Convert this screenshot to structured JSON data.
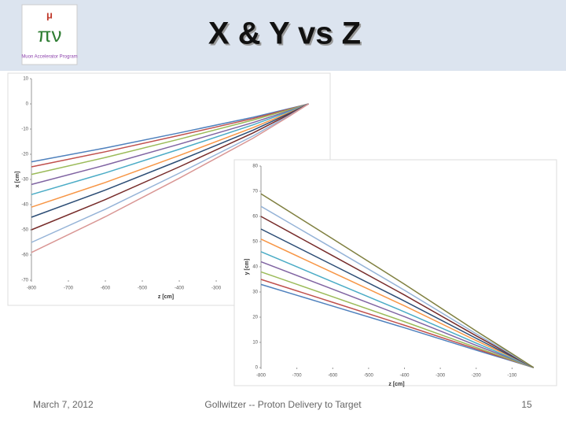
{
  "header": {
    "title": "X & Y vs Z",
    "logo": "Muon Accelerator Program"
  },
  "footer": {
    "date": "March 7, 2012",
    "center": "Gollwitzer -- Proton Delivery to Target",
    "page": "15"
  },
  "chart_data": [
    {
      "type": "line",
      "xlabel": "z [cm]",
      "ylabel": "x [cm]",
      "x": [
        -800,
        -600,
        -400,
        -200,
        -100,
        -50
      ],
      "xlim": [
        -800,
        -30
      ],
      "xticks": [
        -800,
        -700,
        -600,
        -500,
        -400,
        -300
      ],
      "ylim": [
        -70,
        10
      ],
      "yticks": [
        10,
        0,
        -10,
        -20,
        -30,
        -40,
        -50,
        -60,
        -70
      ],
      "series": [
        {
          "color": "#4f81bd",
          "values": [
            -23,
            -17.5,
            -11.5,
            -5.3,
            -1.8,
            0
          ]
        },
        {
          "color": "#c0504d",
          "values": [
            -25,
            -19,
            -12.5,
            -5.8,
            -2,
            0
          ]
        },
        {
          "color": "#9bbb59",
          "values": [
            -28,
            -21.3,
            -14,
            -6.4,
            -2.2,
            0
          ]
        },
        {
          "color": "#8064a2",
          "values": [
            -32,
            -24.3,
            -16,
            -7.4,
            -2.6,
            0
          ]
        },
        {
          "color": "#4bacc6",
          "values": [
            -36,
            -27.4,
            -18,
            -8.3,
            -2.9,
            0
          ]
        },
        {
          "color": "#f79646",
          "values": [
            -41,
            -31.2,
            -20.5,
            -9.4,
            -3.3,
            0
          ]
        },
        {
          "color": "#2c4d75",
          "values": [
            -45,
            -34.2,
            -22.5,
            -10.4,
            -3.6,
            0
          ]
        },
        {
          "color": "#772c2a",
          "values": [
            -50,
            -38,
            -25,
            -11.5,
            -4,
            0
          ]
        },
        {
          "color": "#95b3d7",
          "values": [
            -55,
            -41.8,
            -27.5,
            -12.7,
            -4.4,
            0
          ]
        },
        {
          "color": "#d99694",
          "values": [
            -59,
            -44.8,
            -29.5,
            -13.6,
            -4.7,
            0
          ]
        }
      ]
    },
    {
      "type": "line",
      "xlabel": "z [cm]",
      "ylabel": "y [cm]",
      "x": [
        -800,
        -600,
        -400,
        -200,
        -100,
        -40
      ],
      "xlim": [
        -800,
        0
      ],
      "xticks": [
        -800,
        -700,
        -600,
        -500,
        -400,
        -300,
        -200,
        -100
      ],
      "ylim": [
        0,
        80
      ],
      "yticks": [
        0,
        10,
        20,
        30,
        40,
        50,
        60,
        70,
        80
      ],
      "series": [
        {
          "color": "#4f81bd",
          "values": [
            33,
            24.4,
            15.8,
            6.9,
            2.6,
            0
          ]
        },
        {
          "color": "#c0504d",
          "values": [
            35,
            25.9,
            16.8,
            7.4,
            2.8,
            0
          ]
        },
        {
          "color": "#9bbb59",
          "values": [
            38,
            28.1,
            18.2,
            8,
            3,
            0
          ]
        },
        {
          "color": "#8064a2",
          "values": [
            42,
            31.1,
            20.2,
            8.8,
            3.4,
            0
          ]
        },
        {
          "color": "#4bacc6",
          "values": [
            46,
            34,
            22.1,
            9.7,
            3.7,
            0
          ]
        },
        {
          "color": "#f79646",
          "values": [
            51,
            37.7,
            24.5,
            10.7,
            4.1,
            0
          ]
        },
        {
          "color": "#2c4d75",
          "values": [
            55,
            40.7,
            26.4,
            11.6,
            4.4,
            0
          ]
        },
        {
          "color": "#772c2a",
          "values": [
            60,
            44.4,
            28.8,
            12.6,
            4.8,
            0
          ]
        },
        {
          "color": "#95b3d7",
          "values": [
            64,
            47.4,
            30.7,
            13.4,
            5.1,
            0
          ]
        },
        {
          "color": "#7f7f3f",
          "values": [
            69,
            51.1,
            33.1,
            14.5,
            5.5,
            0
          ]
        }
      ]
    }
  ]
}
